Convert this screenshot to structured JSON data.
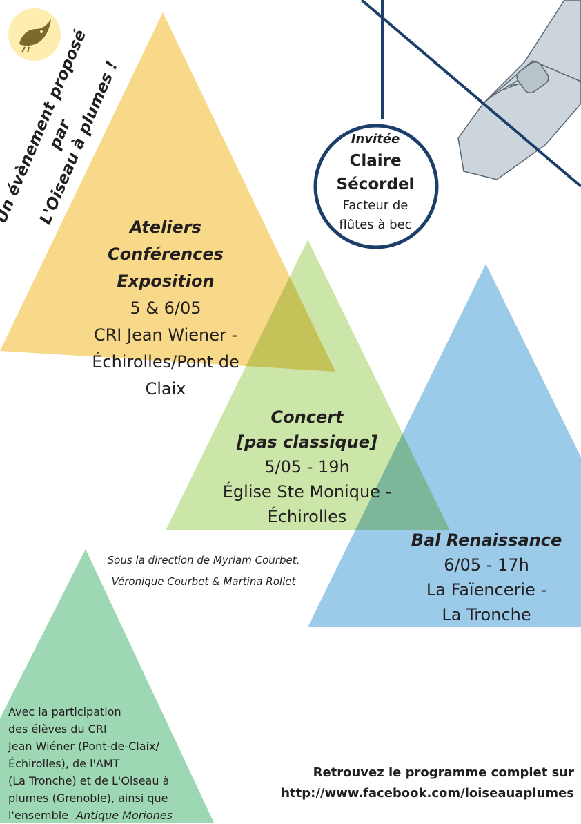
{
  "logo": {
    "label": "L'OISEAU À PLUMES"
  },
  "organizer": {
    "line1": "Un évènement proposé par",
    "line2": "L'Oiseau à plumes !"
  },
  "ateliers": {
    "title1": "Ateliers",
    "title2": "Conférences",
    "title3": "Exposition",
    "date": "5 & 6/05",
    "place1": "CRI Jean Wiener -",
    "place2": "Échirolles/Pont de Claix"
  },
  "concert": {
    "title1": "Concert",
    "title2": "[pas classique]",
    "date": "5/05 - 19h",
    "place1": "Église Ste Monique -",
    "place2": "Échirolles"
  },
  "bal": {
    "title": "Bal Renaissance",
    "date": "6/05 - 17h",
    "place1": "La Faïencerie -",
    "place2": "La Tronche"
  },
  "direction": {
    "line1": "Sous la direction de Myriam Courbet,",
    "line2": "Véronique Courbet & Martina Rollet"
  },
  "invitee": {
    "label": "Invitée",
    "name1": "Claire",
    "name2": "Sécordel",
    "role1": "Facteur de",
    "role2": "flûtes à bec"
  },
  "participation": {
    "line1": "Avec la participation",
    "line2": "des élèves du CRI",
    "line3": "Jean Wiéner (Pont-de-Claix/",
    "line4": "Échirolles), de l'AMT",
    "line5": "(La Tronche) et de L'Oiseau à",
    "line6": "plumes (Grenoble), ainsi que",
    "line7_prefix": "l'ensemble",
    "line7_name": "Antique Moriones"
  },
  "footer": {
    "line1": "Retrouvez le programme complet sur",
    "line2": "http://www.facebook.com/loiseauaplumes"
  },
  "colors": {
    "yellow": "#f8d889",
    "green_light": "#cce5a8",
    "blue": "#9ccbe9",
    "green_mint": "#9dd7b3",
    "navy": "#1c3f6a",
    "logo_bg": "#fdeeb0"
  }
}
